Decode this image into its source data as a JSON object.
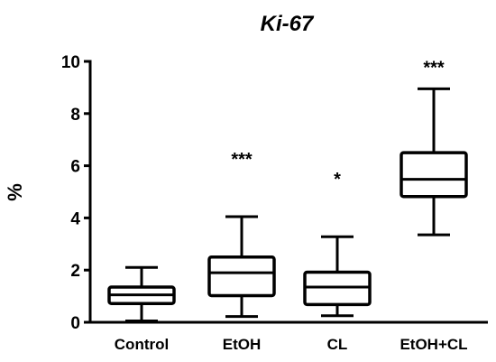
{
  "chart_data": {
    "type": "box",
    "title": "Ki-67",
    "xlabel": "",
    "ylabel": "%",
    "ylim": [
      0,
      10
    ],
    "yticks": [
      "0",
      "2",
      "4",
      "6",
      "8",
      "10"
    ],
    "categories": [
      "Control",
      "EtOH",
      "CL",
      "EtOH+CL"
    ],
    "boxes": [
      {
        "category": "Control",
        "min": 0.05,
        "q1": 0.72,
        "median": 1.05,
        "q3": 1.35,
        "max": 2.1,
        "significance": ""
      },
      {
        "category": "EtOH",
        "min": 0.22,
        "q1": 1.02,
        "median": 1.9,
        "q3": 2.5,
        "max": 4.05,
        "significance": "***"
      },
      {
        "category": "CL",
        "min": 0.25,
        "q1": 0.68,
        "median": 1.35,
        "q3": 1.92,
        "max": 3.28,
        "significance": "*"
      },
      {
        "category": "EtOH+CL",
        "min": 3.35,
        "q1": 4.82,
        "median": 5.48,
        "q3": 6.5,
        "max": 8.95,
        "significance": "***"
      }
    ]
  }
}
